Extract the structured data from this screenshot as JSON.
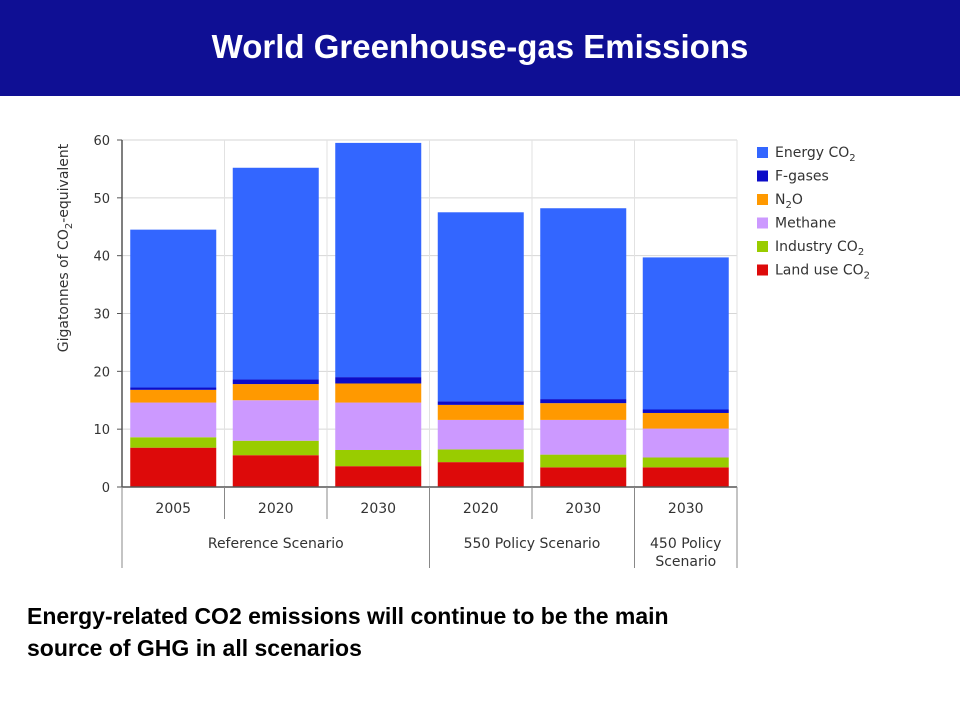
{
  "slide": {
    "title": "World Greenhouse-gas Emissions",
    "caption_line1": "Energy-related CO2 emissions will continue to be the main",
    "caption_line2": "source of GHG in all scenarios"
  },
  "chart_data": {
    "type": "bar",
    "stacked": true,
    "title": "",
    "ylabel": "Gigatonnes of CO2-equivalent",
    "ylim": [
      0,
      60
    ],
    "yticks": [
      0,
      10,
      20,
      30,
      40,
      50,
      60
    ],
    "grid": true,
    "legend_position": "right",
    "categories": [
      "2005",
      "2020",
      "2030",
      "2020",
      "2030",
      "2030"
    ],
    "groups": [
      {
        "label_lines": [
          "Reference Scenario"
        ],
        "start": 0,
        "end": 2
      },
      {
        "label_lines": [
          "550 Policy Scenario"
        ],
        "start": 3,
        "end": 4
      },
      {
        "label_lines": [
          "450 Policy",
          "Scenario"
        ],
        "start": 5,
        "end": 5
      }
    ],
    "series": [
      {
        "name": "Land use CO",
        "subscript": "2",
        "color": "#dd0a0a",
        "values": [
          6.8,
          5.5,
          3.6,
          4.3,
          3.4,
          3.4
        ]
      },
      {
        "name": "Industry CO",
        "subscript": "2",
        "color": "#99cc00",
        "values": [
          1.8,
          2.5,
          2.8,
          2.2,
          2.2,
          1.7
        ]
      },
      {
        "name": "Methane",
        "subscript": "",
        "color": "#cc99ff",
        "values": [
          6.0,
          7.0,
          8.2,
          5.1,
          6.0,
          5.0
        ]
      },
      {
        "name": "N",
        "subscript": "2",
        "suffix": "O",
        "color": "#ff9900",
        "values": [
          2.2,
          2.8,
          3.3,
          2.6,
          2.9,
          2.7
        ]
      },
      {
        "name": "F-gases",
        "subscript": "",
        "color": "#0c0cc8",
        "values": [
          0.4,
          0.8,
          1.1,
          0.6,
          0.7,
          0.6
        ]
      },
      {
        "name": "Energy CO",
        "subscript": "2",
        "color": "#3366ff",
        "values": [
          27.3,
          36.6,
          40.5,
          32.7,
          33.0,
          26.3
        ]
      }
    ]
  }
}
